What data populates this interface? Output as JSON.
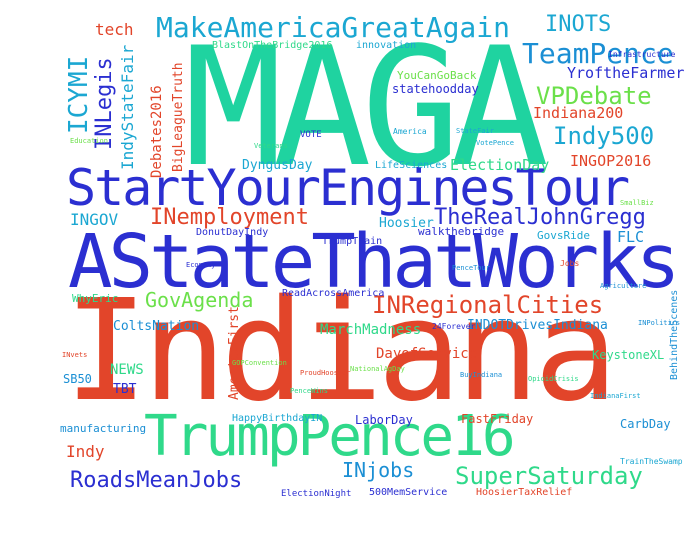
{
  "cloud": {
    "words": [
      {
        "text": "MAGA",
        "color": "#1fd3a0"
      },
      {
        "text": "Indiana",
        "color": "#e2452a"
      },
      {
        "text": "AStateThatWorks",
        "color": "#2b2fd1"
      },
      {
        "text": "StartYourEnginesTour",
        "color": "#2b2fd1"
      },
      {
        "text": "TrumpPence16",
        "color": "#2fd98a"
      },
      {
        "text": "MakeAmericaGreatAgain",
        "color": "#1ba7d2"
      },
      {
        "text": "INOTS",
        "color": "#1ba7d2"
      },
      {
        "text": "TeamPence",
        "color": "#1b8fd4"
      },
      {
        "text": "VPDebate",
        "color": "#6be04a"
      },
      {
        "text": "Indy500",
        "color": "#1ba7d2"
      },
      {
        "text": "INemployment",
        "color": "#e2452a"
      },
      {
        "text": "TheRealJohnGregg",
        "color": "#2b2fd1"
      },
      {
        "text": "INRegionalCities",
        "color": "#e2452a"
      },
      {
        "text": "GovAgenda",
        "color": "#6be04a"
      },
      {
        "text": "RoadsMeanJobs",
        "color": "#2b2fd1"
      },
      {
        "text": "SuperSaturday",
        "color": "#2fd98a"
      },
      {
        "text": "INjobs",
        "color": "#1b8fd4"
      },
      {
        "text": "ICYMI",
        "color": "#1ba7d2"
      },
      {
        "text": "INLegis",
        "color": "#2b2fd1"
      },
      {
        "text": "YroftheFarmer",
        "color": "#2b2fd1"
      },
      {
        "text": "Indiana200",
        "color": "#e2452a"
      },
      {
        "text": "INGOP2016",
        "color": "#e2452a"
      },
      {
        "text": "Debates2016",
        "color": "#e2452a"
      },
      {
        "text": "BigLeagueTruth",
        "color": "#e2452a"
      },
      {
        "text": "IndyStateFair",
        "color": "#1ba7d2"
      },
      {
        "text": "tech",
        "color": "#e2452a"
      },
      {
        "text": "INGOV",
        "color": "#1ba7d2"
      },
      {
        "text": "ElectionDay",
        "color": "#2fd98a"
      },
      {
        "text": "DyngusDay",
        "color": "#1ba7d2"
      },
      {
        "text": "Hoosier",
        "color": "#1ba7d2"
      },
      {
        "text": "FLC",
        "color": "#1b8fd4"
      },
      {
        "text": "MarchMadness",
        "color": "#2fd98a"
      },
      {
        "text": "ColtsNation",
        "color": "#1b8fd4"
      },
      {
        "text": "INDOTDrivesIndiana",
        "color": "#1b8fd4"
      },
      {
        "text": "NEWS",
        "color": "#2fd98a"
      },
      {
        "text": "AmericaFirst",
        "color": "#e2452a"
      },
      {
        "text": "DayofService",
        "color": "#e2452a"
      },
      {
        "text": "KeystoneXL",
        "color": "#2fd98a"
      },
      {
        "text": "FastFriday",
        "color": "#e2452a"
      },
      {
        "text": "LaborDay",
        "color": "#2b2fd1"
      },
      {
        "text": "CarbDay",
        "color": "#1b8fd4"
      },
      {
        "text": "manufacturing",
        "color": "#1b8fd4"
      },
      {
        "text": "Indy",
        "color": "#e2452a"
      },
      {
        "text": "SB50",
        "color": "#1b8fd4"
      },
      {
        "text": "TBT",
        "color": "#2b2fd1"
      },
      {
        "text": "WhyEric",
        "color": "#2fd98a"
      },
      {
        "text": "ReadAcrossAmerica",
        "color": "#2b2fd1"
      },
      {
        "text": "TrumpTrain",
        "color": "#2b2fd1"
      },
      {
        "text": "GovsRide",
        "color": "#1ba7d2"
      },
      {
        "text": "walkthebridge",
        "color": "#2b2fd1"
      },
      {
        "text": "DonutDayIndy",
        "color": "#2b2fd1"
      },
      {
        "text": "LifeSciences",
        "color": "#1ba7d2"
      },
      {
        "text": "statehoodday",
        "color": "#2b2fd1"
      },
      {
        "text": "YouCanGoBack",
        "color": "#6be04a"
      },
      {
        "text": "BlastOnTheBridge2016",
        "color": "#2fd98a"
      },
      {
        "text": "innovation",
        "color": "#1ba7d2"
      },
      {
        "text": "HappyBirthdayIN",
        "color": "#1ba7d2"
      },
      {
        "text": "500MemService",
        "color": "#2b2fd1"
      },
      {
        "text": "HoosierTaxRelief",
        "color": "#e2452a"
      },
      {
        "text": "BehindTheScenes",
        "color": "#1b8fd4"
      },
      {
        "text": "24Forever",
        "color": "#2b2fd1"
      },
      {
        "text": "ElectionNight",
        "color": "#2b2fd1"
      },
      {
        "text": "VOTE",
        "color": "#2b2fd1"
      },
      {
        "text": "America",
        "color": "#1ba7d2"
      },
      {
        "text": "TrainTheSwamp",
        "color": "#1ba7d2"
      },
      {
        "text": "GOPConvention",
        "color": "#6be04a"
      },
      {
        "text": "NationalAgDay",
        "color": "#6be04a"
      },
      {
        "text": "ProudHoosier",
        "color": "#e2452a"
      },
      {
        "text": "IndianaFirst",
        "color": "#1ba7d2"
      },
      {
        "text": "PenceWins",
        "color": "#2fd98a"
      },
      {
        "text": "BuyIndiana",
        "color": "#1b8fd4"
      },
      {
        "text": "OpioidCrisis",
        "color": "#2fd98a"
      },
      {
        "text": "Agriculture",
        "color": "#1b8fd4"
      },
      {
        "text": "INvets",
        "color": "#e2452a"
      },
      {
        "text": "StateFair",
        "color": "#1ba7d2"
      },
      {
        "text": "Infrastructure",
        "color": "#2b2fd1"
      },
      {
        "text": "SmallBiz",
        "color": "#6be04a"
      },
      {
        "text": "PenceTour",
        "color": "#1b8fd4"
      },
      {
        "text": "VotePence",
        "color": "#1ba7d2"
      },
      {
        "text": "Veterans",
        "color": "#2fd98a"
      },
      {
        "text": "Jobs",
        "color": "#e2452a"
      },
      {
        "text": "Economy",
        "color": "#2b2fd1"
      },
      {
        "text": "Education",
        "color": "#6be04a"
      },
      {
        "text": "INPolitics",
        "color": "#1b8fd4"
      }
    ]
  }
}
